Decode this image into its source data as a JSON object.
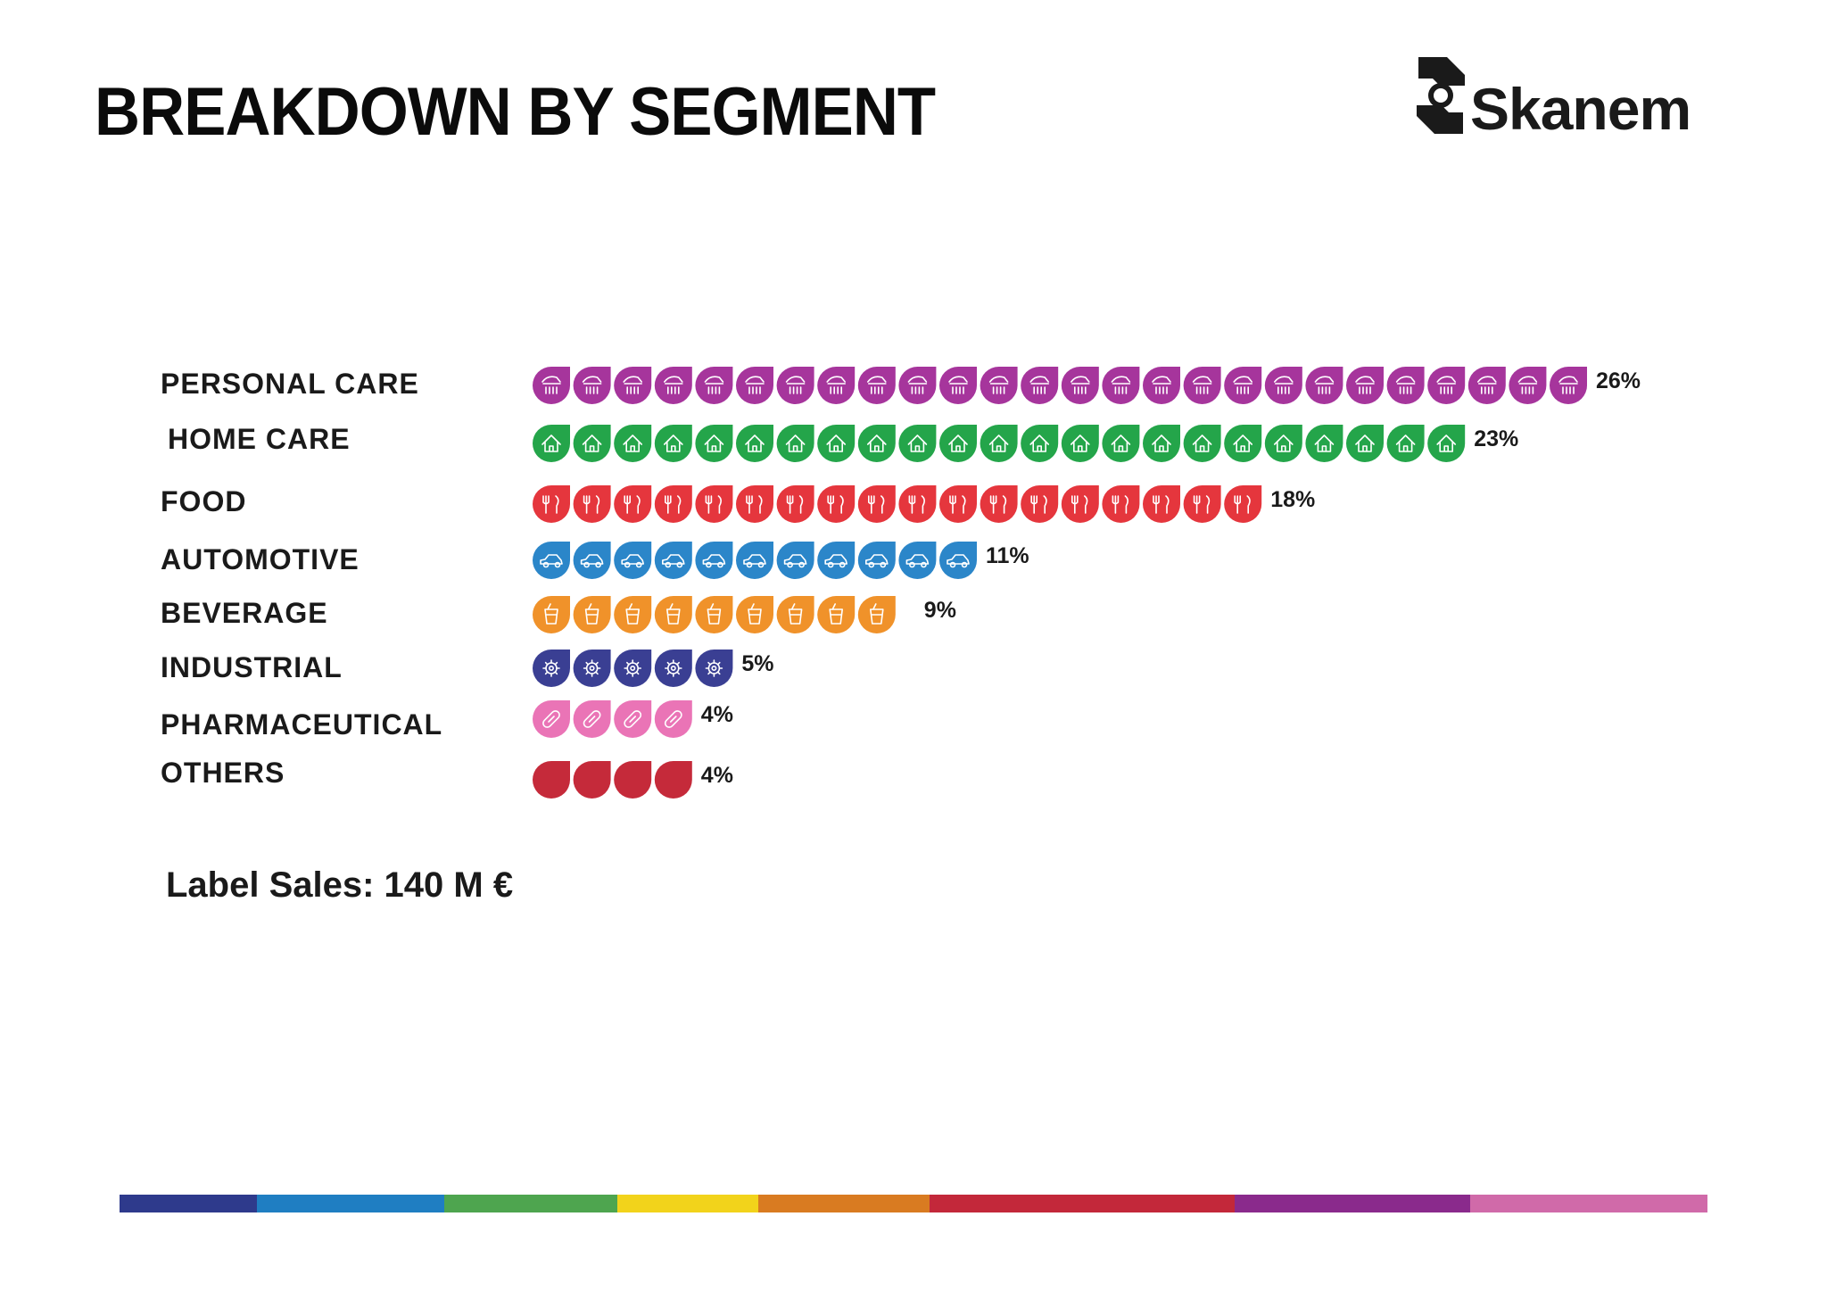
{
  "title": "BREAKDOWN BY SEGMENT",
  "logo": {
    "text": "Skanem",
    "color": "#1a1a1a"
  },
  "footer": {
    "sales": "Label Sales: 140 M €"
  },
  "stripe_colors": [
    "#2e3a8c",
    "#1f7ec2",
    "#4ea54f",
    "#f2d31b",
    "#d97b21",
    "#c3283a",
    "#8a2a8c",
    "#d06aa9"
  ],
  "chart_data": {
    "type": "bar",
    "categories": [
      "PERSONAL CARE",
      "HOME CARE",
      "FOOD",
      "AUTOMOTIVE",
      "BEVERAGE",
      "INDUSTRIAL",
      "PHARMACEUTICAL",
      "OTHERS"
    ],
    "values": [
      26,
      23,
      18,
      11,
      9,
      5,
      4,
      4
    ],
    "value_labels": [
      "26%",
      "23%",
      "18%",
      "11%",
      "9%",
      "5%",
      "4%",
      "4%"
    ],
    "unit": "%",
    "colors": [
      "#a6359c",
      "#24a54a",
      "#e5363d",
      "#2b86c9",
      "#f0922a",
      "#3a3f93",
      "#ea74b6",
      "#c52a3a"
    ],
    "icons": [
      "shower-icon",
      "house-icon",
      "fork-knife-icon",
      "car-icon",
      "cup-icon",
      "gear-icon",
      "pill-icon",
      "plain-drop-icon"
    ],
    "title": "BREAKDOWN BY SEGMENT",
    "legend": "none",
    "grid": false
  }
}
